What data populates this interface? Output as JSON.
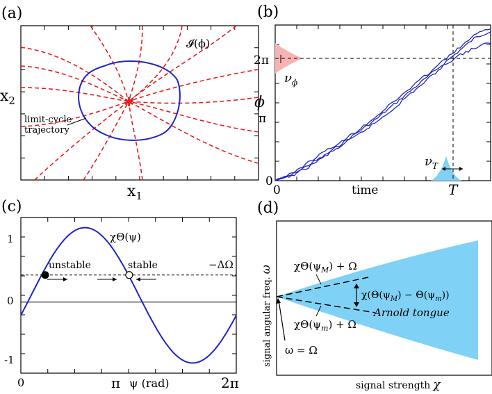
{
  "figure": {
    "colors": {
      "blue": "#1f24c8",
      "red": "#e81d1d",
      "pink": "#f7b3b3",
      "cyan": "#7fd2f5",
      "black": "#000000"
    }
  },
  "panel_a": {
    "tag": "(a)",
    "xlabel": "x",
    "xlabel_sub": "1",
    "ylabel": "x",
    "ylabel_sub": "2",
    "isochron_label": "𝓘(ϕ)",
    "cycle_label_line1": "limit-cycle",
    "cycle_label_line2": "trajectory"
  },
  "panel_b": {
    "tag": "(b)",
    "xlabel": "time",
    "ylabel": "ϕ",
    "ytick_0": "0",
    "ytick_pi": "π",
    "ytick_2pi": "2π",
    "xtick_0": "0",
    "xtick_T": "T",
    "nu_phi": "ν",
    "nu_phi_sub": "ϕ",
    "nu_T": "ν",
    "nu_T_sub": "T"
  },
  "panel_c": {
    "tag": "(c)",
    "curve_label": "χΘ(ψ)",
    "unstable_label": "unstable",
    "stable_label": "stable",
    "offset_label": "−ΔΩ",
    "ytick_1": "1",
    "ytick_0": "0",
    "ytick_m1": "-1",
    "xtick_0": "0",
    "xtick_pi": "π",
    "xtick_2pi": "2π",
    "xlabel": "ψ (rad)"
  },
  "panel_d": {
    "tag": "(d)",
    "xlabel": "signal strength",
    "xlabel_sym": "χ",
    "ylabel": "signal angular freq.",
    "ylabel_sym": "ω",
    "upper_label": "χΘ(ψ",
    "upper_sub": "M",
    "upper_tail": ") + Ω",
    "lower_label": "χΘ(ψ",
    "lower_sub": "m",
    "lower_tail": ") + Ω",
    "width_label": "χ(Θ(ψ",
    "width_sub1": "M",
    "width_mid": ") − Θ(ψ",
    "width_sub2": "m",
    "width_tail": "))",
    "tongue_label": "Arnold tongue",
    "origin_label": "ω = Ω"
  },
  "chart_data": [
    {
      "panel": "(b)",
      "type": "line",
      "xlabel": "time",
      "ylabel": "ϕ",
      "yticks": [
        "0",
        "π",
        "2π"
      ],
      "xticks": [
        "0",
        "T"
      ],
      "series": [
        {
          "values": [
            0,
            0.3,
            0.8,
            1.3,
            1.9,
            2.5,
            3.1,
            3.8,
            4.5,
            5.2,
            5.9,
            6.6,
            7.3,
            7.7
          ]
        },
        {
          "values": [
            0,
            0.25,
            0.7,
            1.25,
            1.8,
            2.35,
            2.95,
            3.6,
            4.35,
            5.05,
            5.8,
            6.4,
            6.8,
            7.1
          ]
        },
        {
          "values": [
            0,
            0.35,
            0.95,
            1.5,
            2.0,
            2.6,
            3.25,
            3.95,
            4.65,
            5.35,
            6.05,
            6.75,
            7.45,
            7.85
          ]
        }
      ]
    },
    {
      "panel": "(c)",
      "type": "line",
      "xlabel": "ψ (rad)",
      "xlim": [
        0,
        6.2832
      ],
      "ylim": [
        -1.05,
        1.25
      ],
      "xticks": [
        "0",
        "π",
        "2π"
      ],
      "yticks": [
        "1",
        "0",
        "-1"
      ],
      "series": [
        {
          "name": "χΘ(ψ)",
          "function": "0.1 + sin(ψ − 0.3)"
        },
        {
          "name": "−ΔΩ",
          "constant": 0.4
        }
      ],
      "points": [
        {
          "label": "unstable",
          "x": 0.71,
          "y": 0.4,
          "filled": true
        },
        {
          "label": "stable",
          "x": 3.16,
          "y": 0.4,
          "filled": false
        }
      ]
    }
  ]
}
